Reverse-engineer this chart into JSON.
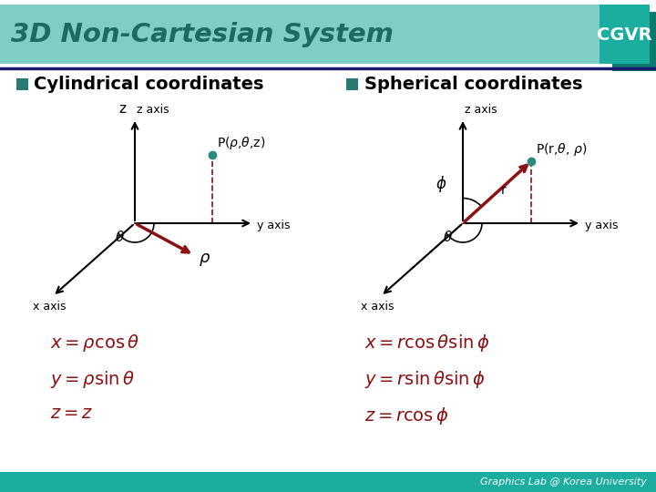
{
  "title": "3D Non-Cartesian System",
  "title_color": "#1a6b60",
  "title_bg": "#7ecec5",
  "cgvr_bg": "#1aada0",
  "cgvr_shadow": "#0d7a70",
  "bullet_color": "#2a7a74",
  "section1": "Cylindrical coordinates",
  "section2": "Spherical coordinates",
  "dark_red": "#8b1010",
  "dark_navy": "#1a1a6e",
  "axis_color": "#000000",
  "footer": "Graphics Lab @ Korea University",
  "footer_color": "#555555",
  "footer_bg": "#1aada0"
}
